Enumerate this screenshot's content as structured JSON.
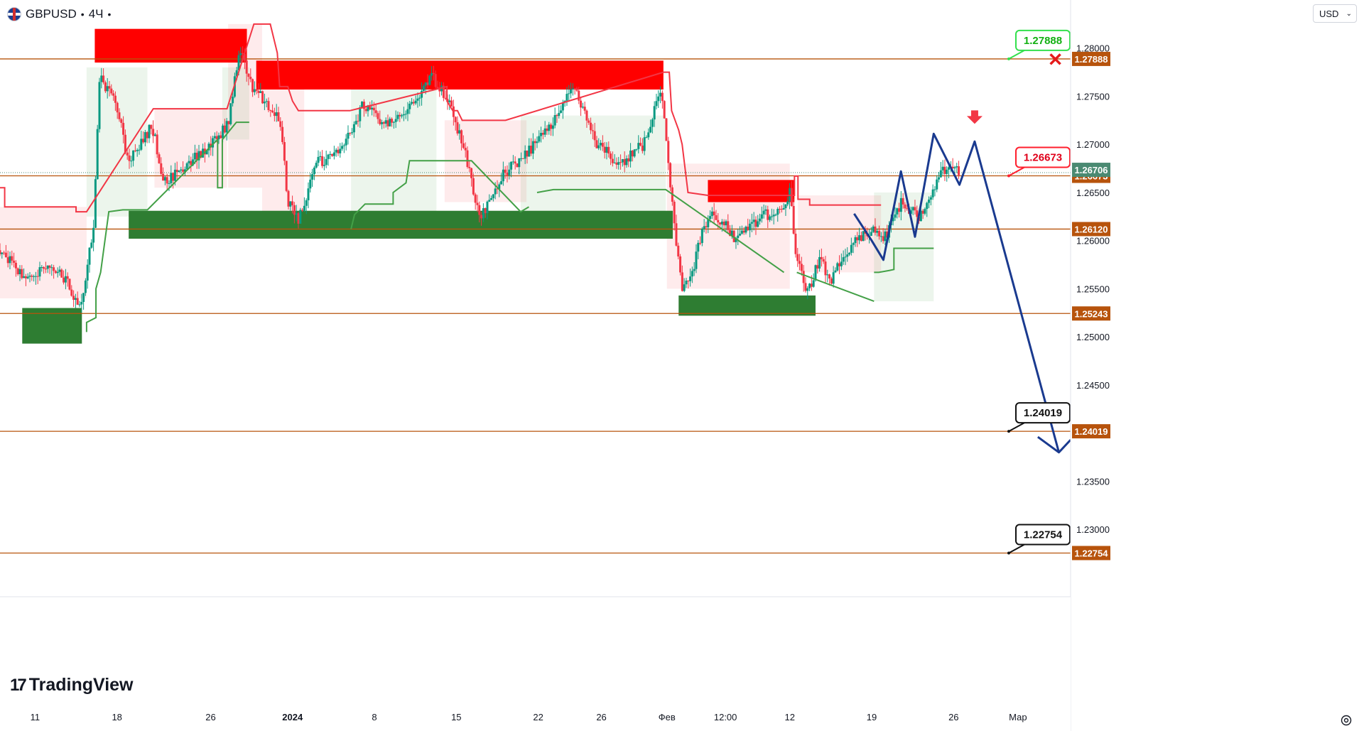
{
  "header": {
    "symbol": "GBPUSD",
    "separator": "•",
    "interval": "4Ч",
    "menu_dot": "•"
  },
  "currency": {
    "label": "USD"
  },
  "branding": {
    "logo_text": "TradingView",
    "logo_mark": "17"
  },
  "icons": {
    "flag": "gb-us-flag-icon",
    "settings": "settings-icon",
    "chevron": "chevron-down-icon",
    "signal_arrow": "down-arrow-icon",
    "cancel": "x-mark-icon"
  },
  "colors": {
    "bull": "#089981",
    "bear": "#f23645",
    "level_line": "#b7530c",
    "level_label_bg": "#b7530c",
    "current_price_bg": "#4a8a72",
    "supply_zone": "#ff0000",
    "demand_zone": "#2e7d32",
    "trail_red": "#f23645",
    "trail_green": "#43a047",
    "forecast_line": "#1a3a8f"
  },
  "chart_data": {
    "type": "candlestick",
    "symbol": "GBPUSD",
    "interval": "4Ч",
    "ylim": [
      1.223,
      1.285
    ],
    "y_ticks": [
      "1.28000",
      "1.27500",
      "1.27000",
      "1.26500",
      "1.26000",
      "1.25500",
      "1.25000",
      "1.24500",
      "1.24000",
      "1.23500",
      "1.23000"
    ],
    "y_tick_values": [
      1.28,
      1.275,
      1.27,
      1.265,
      1.26,
      1.255,
      1.25,
      1.245,
      1.24,
      1.235,
      1.23
    ],
    "x_ticks": [
      {
        "label": "11",
        "t": 0.0
      },
      {
        "label": "18",
        "t": 7.0
      },
      {
        "label": "26",
        "t": 15.0
      },
      {
        "label": "2024",
        "t": 22.0
      },
      {
        "label": "8",
        "t": 29.0
      },
      {
        "label": "15",
        "t": 36.0
      },
      {
        "label": "22",
        "t": 43.0
      },
      {
        "label": "26",
        "t": 48.4
      },
      {
        "label": "Фев",
        "t": 54.0
      },
      {
        "label": "12:00",
        "t": 59.0
      },
      {
        "label": "12",
        "t": 64.5
      },
      {
        "label": "19",
        "t": 71.5
      },
      {
        "label": "26",
        "t": 78.5
      },
      {
        "label": "Мар",
        "t": 84.0
      }
    ],
    "t_range": [
      -3.0,
      88.5
    ],
    "levels": [
      {
        "value": 1.27888,
        "label": "1.27888"
      },
      {
        "value": 1.26673,
        "label": "1.26673"
      },
      {
        "value": 1.2612,
        "label": "1.26120"
      },
      {
        "value": 1.25243,
        "label": "1.25243"
      },
      {
        "value": 1.24019,
        "label": "1.24019"
      },
      {
        "value": 1.22754,
        "label": "1.22754"
      }
    ],
    "current_price": {
      "value": 1.26706,
      "label": "1.26706"
    },
    "callouts": [
      {
        "value": 1.27888,
        "label": "1.27888",
        "style": "green"
      },
      {
        "value": 1.26673,
        "label": "1.26673",
        "style": "red"
      },
      {
        "value": 1.24019,
        "label": "1.24019",
        "style": "black"
      },
      {
        "value": 1.22754,
        "label": "1.22754",
        "style": "black"
      }
    ],
    "supply_zones": [
      {
        "t0": 5.1,
        "t1": 18.1,
        "y_low": 1.2785,
        "y_high": 1.282
      },
      {
        "t0": 18.9,
        "t1": 53.7,
        "y_low": 1.2757,
        "y_high": 1.2787
      },
      {
        "t0": 57.5,
        "t1": 64.9,
        "y_low": 1.264,
        "y_high": 1.2663
      }
    ],
    "demand_zones": [
      {
        "t0": -1.1,
        "t1": 4.0,
        "y_low": 1.2493,
        "y_high": 1.253
      },
      {
        "t0": 8.0,
        "t1": 54.5,
        "y_low": 1.2602,
        "y_high": 1.2631
      },
      {
        "t0": 55.0,
        "t1": 66.7,
        "y_low": 1.2522,
        "y_high": 1.2543
      }
    ],
    "trail_red": [
      [
        -3.0,
        1.2655
      ],
      [
        -2.6,
        1.2655
      ],
      [
        -2.6,
        1.2635
      ],
      [
        3.5,
        1.2635
      ],
      [
        3.5,
        1.263
      ],
      [
        4.4,
        1.263
      ],
      [
        10.1,
        1.2737
      ],
      [
        16.4,
        1.2737
      ],
      [
        18.7,
        1.2825
      ],
      [
        20.1,
        1.2825
      ],
      [
        20.7,
        1.2795
      ],
      [
        20.9,
        1.276
      ],
      [
        21.6,
        1.276
      ],
      [
        22.0,
        1.2745
      ],
      [
        22.5,
        1.2735
      ],
      [
        26.9,
        1.2735
      ],
      [
        26.9,
        1.2735
      ],
      [
        35.2,
        1.276
      ],
      [
        35.2,
        1.2745
      ],
      [
        35.7,
        1.2735
      ],
      [
        36.1,
        1.2735
      ],
      [
        36.5,
        1.2725
      ],
      [
        40.2,
        1.2725
      ],
      [
        53.7,
        1.2775
      ],
      [
        54.2,
        1.2775
      ],
      [
        54.4,
        1.2735
      ],
      [
        55.0,
        1.2715
      ],
      [
        55.3,
        1.27
      ],
      [
        55.8,
        1.265
      ],
      [
        57.5,
        1.2647
      ],
      [
        64.9,
        1.2647
      ],
      [
        64.9,
        1.2667
      ],
      [
        65.2,
        1.2667
      ],
      [
        65.2,
        1.2643
      ],
      [
        66.2,
        1.2643
      ],
      [
        66.2,
        1.2637
      ],
      [
        72.3,
        1.2637
      ]
    ],
    "trail_green": [
      [
        4.4,
        1.2505
      ],
      [
        4.4,
        1.2515
      ],
      [
        5.2,
        1.252
      ],
      [
        5.2,
        1.255
      ],
      [
        5.6,
        1.2567
      ],
      [
        6.3,
        1.263
      ],
      [
        7.5,
        1.2632
      ],
      [
        9.6,
        1.2632
      ],
      [
        15.6,
        1.2705
      ],
      [
        15.6,
        1.2655
      ],
      [
        16.0,
        1.2655
      ],
      [
        16.0,
        1.2705
      ],
      [
        17.2,
        1.2723
      ],
      [
        18.3,
        1.2723
      ],
      [
        27.0,
        1.2612
      ],
      [
        27.3,
        1.2627
      ],
      [
        28.2,
        1.2638
      ],
      [
        30.6,
        1.2638
      ],
      [
        30.6,
        1.265
      ],
      [
        31.7,
        1.266
      ],
      [
        32.0,
        1.2683
      ],
      [
        34.3,
        1.2683
      ],
      [
        37.3,
        1.2683
      ],
      [
        41.5,
        1.263
      ],
      [
        42.2,
        1.2635
      ],
      [
        42.9,
        1.265
      ],
      [
        44.3,
        1.2653
      ],
      [
        53.9,
        1.2653
      ],
      [
        64.0,
        1.2567
      ],
      [
        65.1,
        1.2567
      ],
      [
        71.7,
        1.2537
      ],
      [
        71.7,
        1.2567
      ],
      [
        72.1,
        1.2567
      ],
      [
        73.0,
        1.2569
      ],
      [
        73.4,
        1.257
      ],
      [
        73.4,
        1.2592
      ],
      [
        76.8,
        1.2592
      ]
    ],
    "fill_red_regions": [
      {
        "t0": 16.5,
        "t1": 19.4,
        "y_low": 1.2655,
        "y_high": 1.2825
      },
      {
        "t0": 19.4,
        "t1": 23.0,
        "y_low": 1.262,
        "y_high": 1.276
      },
      {
        "t0": 35.0,
        "t1": 42.0,
        "y_low": 1.264,
        "y_high": 1.2725
      },
      {
        "t0": 54.0,
        "t1": 64.5,
        "y_low": 1.255,
        "y_high": 1.268
      },
      {
        "t0": 65.2,
        "t1": 72.3,
        "y_low": 1.2567,
        "y_high": 1.2647
      },
      {
        "t0": -3.0,
        "t1": 4.4,
        "y_low": 1.254,
        "y_high": 1.2635
      },
      {
        "t0": 10.2,
        "t1": 16.4,
        "y_low": 1.2655,
        "y_high": 1.2737
      }
    ],
    "fill_green_regions": [
      {
        "t0": 4.4,
        "t1": 9.6,
        "y_low": 1.2625,
        "y_high": 1.278
      },
      {
        "t0": 16.0,
        "t1": 18.3,
        "y_low": 1.2705,
        "y_high": 1.278
      },
      {
        "t0": 27.0,
        "t1": 34.3,
        "y_low": 1.262,
        "y_high": 1.276
      },
      {
        "t0": 41.5,
        "t1": 53.9,
        "y_low": 1.263,
        "y_high": 1.273
      },
      {
        "t0": 71.7,
        "t1": 76.8,
        "y_low": 1.2537,
        "y_high": 1.265
      }
    ],
    "forecast_path": [
      [
        70.0,
        1.2628
      ],
      [
        71.5,
        1.26
      ],
      [
        72.5,
        1.258
      ],
      [
        74.0,
        1.2672
      ],
      [
        75.2,
        1.2604
      ],
      [
        76.8,
        1.2711
      ],
      [
        79.0,
        1.2658
      ],
      [
        80.3,
        1.2703
      ],
      [
        87.5,
        1.238
      ]
    ],
    "forecast_arrowhead": [
      [
        85.7,
        1.2396
      ],
      [
        87.5,
        1.238
      ],
      [
        88.5,
        1.2393
      ]
    ],
    "signal_arrow": {
      "t": 80.3,
      "y": 1.2725
    },
    "cancel_mark": {
      "t": 87.2,
      "y": 1.27885
    },
    "candles_seed": 20240226
  }
}
